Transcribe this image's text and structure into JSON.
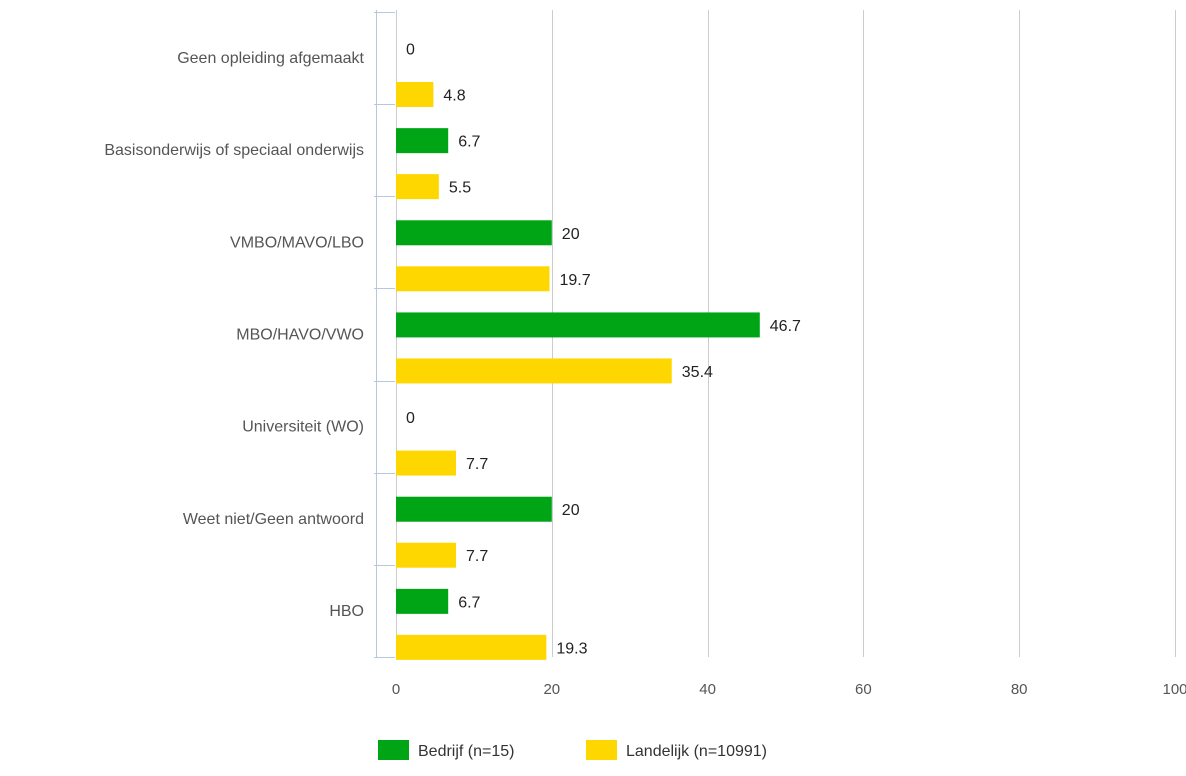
{
  "chart_data": {
    "type": "bar",
    "orientation": "horizontal",
    "categories": [
      "Geen opleiding afgemaakt",
      "Basisonderwijs of speciaal onderwijs",
      "VMBO/MAVO/LBO",
      "MBO/HAVO/VWO",
      "Universiteit (WO)",
      "Weet niet/Geen antwoord",
      "HBO"
    ],
    "series": [
      {
        "name": "Bedrijf (n=15)",
        "color": "#00a515",
        "values": [
          0,
          6.7,
          20,
          46.7,
          0,
          20,
          6.7
        ],
        "labels": [
          "0",
          "6.7",
          "20",
          "46.7",
          "0",
          "20",
          "6.7"
        ]
      },
      {
        "name": "Landelijk (n=10991)",
        "color": "#ffd700",
        "values": [
          4.8,
          5.5,
          19.7,
          35.4,
          7.7,
          7.7,
          19.3
        ],
        "labels": [
          "4.8",
          "5.5",
          "19.7",
          "35.4",
          "7.7",
          "7.7",
          "19.3"
        ]
      }
    ],
    "xlim": [
      0,
      100
    ],
    "xticks": [
      "0",
      "20",
      "40",
      "60",
      "80",
      "100"
    ],
    "grid": true,
    "legend": "bottom-center",
    "gridColor": "#cccccc",
    "axisColor": "#b8c8dc"
  }
}
